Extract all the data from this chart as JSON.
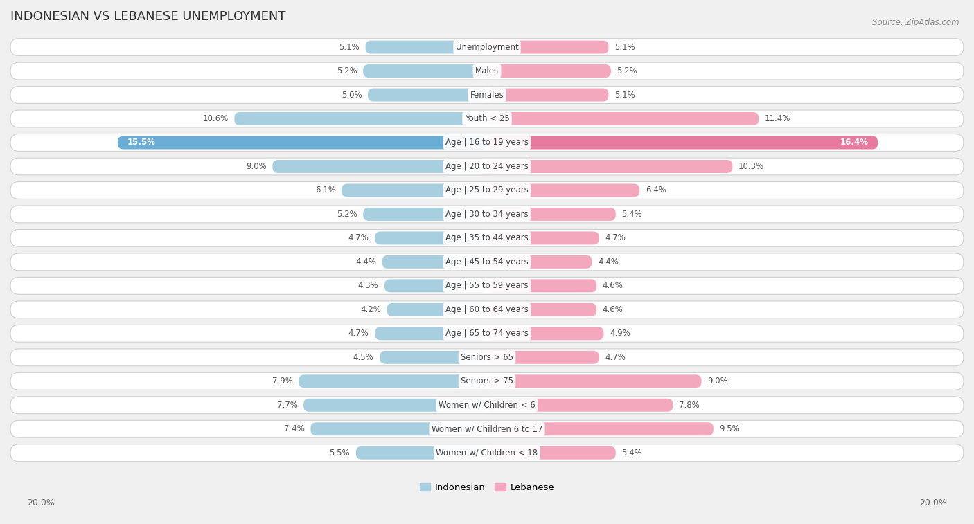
{
  "title": "INDONESIAN VS LEBANESE UNEMPLOYMENT",
  "source": "Source: ZipAtlas.com",
  "categories": [
    "Unemployment",
    "Males",
    "Females",
    "Youth < 25",
    "Age | 16 to 19 years",
    "Age | 20 to 24 years",
    "Age | 25 to 29 years",
    "Age | 30 to 34 years",
    "Age | 35 to 44 years",
    "Age | 45 to 54 years",
    "Age | 55 to 59 years",
    "Age | 60 to 64 years",
    "Age | 65 to 74 years",
    "Seniors > 65",
    "Seniors > 75",
    "Women w/ Children < 6",
    "Women w/ Children 6 to 17",
    "Women w/ Children < 18"
  ],
  "indonesian": [
    5.1,
    5.2,
    5.0,
    10.6,
    15.5,
    9.0,
    6.1,
    5.2,
    4.7,
    4.4,
    4.3,
    4.2,
    4.7,
    4.5,
    7.9,
    7.7,
    7.4,
    5.5
  ],
  "lebanese": [
    5.1,
    5.2,
    5.1,
    11.4,
    16.4,
    10.3,
    6.4,
    5.4,
    4.7,
    4.4,
    4.6,
    4.6,
    4.9,
    4.7,
    9.0,
    7.8,
    9.5,
    5.4
  ],
  "indonesian_color": "#a8cfe0",
  "lebanese_color": "#f4a8be",
  "highlight_indonesian_color": "#6aadd5",
  "highlight_lebanese_color": "#e8799f",
  "max_val": 20.0,
  "bg_color": "#f0f0f0",
  "row_bg_color": "#ffffff",
  "row_border_color": "#d0d0d0",
  "label_color_normal": "#555555",
  "label_color_highlight": "#ffffff",
  "legend_indonesian": "Indonesian",
  "legend_lebanese": "Lebanese"
}
